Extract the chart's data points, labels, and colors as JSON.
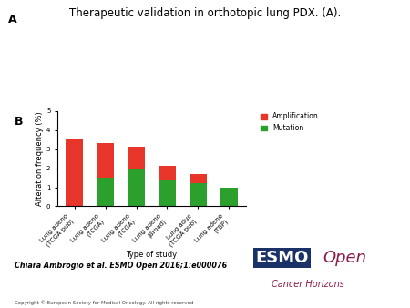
{
  "title": "Therapeutic validation in orthotopic lung PDX. (A).",
  "title_fontsize": 8.5,
  "categories": [
    "Lung adeno\n(TCGA pub)",
    "Lung adeno\n(TCGA)",
    "Lung adeno\n(TCGA)",
    "Lung adeno\n(Broad)",
    "Lung aduc\n(TCGA pub)",
    "Lung adeno\n(TBP)"
  ],
  "xlabel": "Type of study",
  "ylabel": "Alteration frequency (%)",
  "ylim": [
    0,
    5
  ],
  "yticks": [
    0,
    1,
    2,
    3,
    4,
    5
  ],
  "amplification_values": [
    3.5,
    1.8,
    1.1,
    0.7,
    0.5,
    0.0
  ],
  "mutation_values": [
    0.0,
    1.5,
    2.0,
    1.4,
    1.2,
    1.0
  ],
  "amp_color": "#e8352a",
  "mut_color": "#2ca02c",
  "legend_amp": "Amplification",
  "legend_mut": "Mutation",
  "citation": "Chiara Ambrogio et al. ESMO Open 2016;1:e000076",
  "copyright": "Copyright © European Society for Medical Oncology. All rights reserved",
  "bg_color": "#ffffff",
  "bar_width": 0.55,
  "tick_label_fontsize": 5.0,
  "axis_label_fontsize": 6.0,
  "legend_fontsize": 5.5,
  "esmo_blue": "#1a3268",
  "esmo_red": "#8b1a4a",
  "esmo_fontsize": 13,
  "horizons_fontsize": 7
}
